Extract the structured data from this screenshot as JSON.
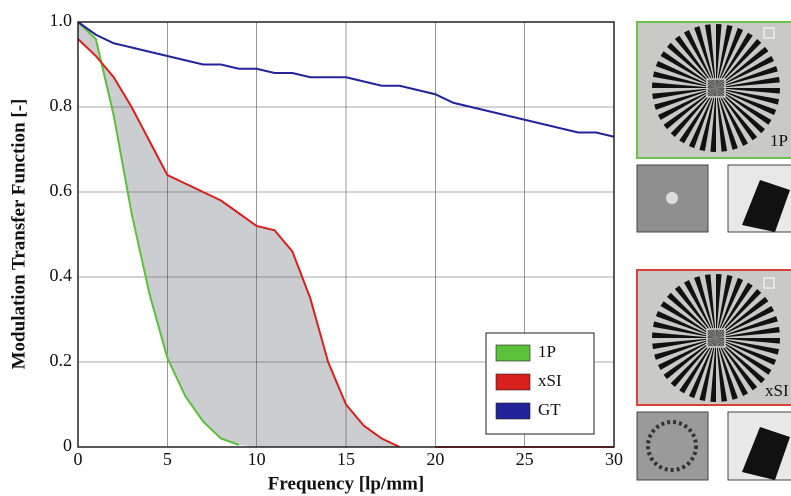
{
  "chart_data": {
    "type": "line",
    "xlabel": "Frequency [lp/mm]",
    "ylabel": "Modulation Transfer Function [-]",
    "x": [
      0,
      1,
      2,
      3,
      4,
      5,
      6,
      7,
      8,
      9,
      10,
      11,
      12,
      13,
      14,
      15,
      16,
      17,
      18,
      19,
      20,
      21,
      22,
      23,
      24,
      25,
      26,
      27,
      28,
      29,
      30
    ],
    "series": [
      {
        "name": "1P",
        "color": "#5cc13a",
        "values": [
          1.0,
          0.96,
          0.78,
          0.55,
          0.36,
          0.21,
          0.12,
          0.06,
          0.02,
          0.005,
          null,
          null,
          null,
          null,
          null,
          null,
          null,
          null,
          null,
          null,
          null,
          null,
          null,
          null,
          null,
          null,
          null,
          null,
          null,
          null,
          null
        ]
      },
      {
        "name": "xSI",
        "color": "#d8201c",
        "values": [
          0.96,
          0.92,
          0.87,
          0.8,
          0.72,
          0.64,
          0.62,
          0.6,
          0.58,
          0.55,
          0.52,
          0.51,
          0.46,
          0.35,
          0.2,
          0.1,
          0.05,
          0.02,
          0.0,
          null,
          0.0,
          0.0,
          0.0,
          0.0,
          0.0,
          0.0,
          0.0,
          0.0,
          0.0,
          0.0,
          0.0
        ]
      },
      {
        "name": "GT",
        "color": "#23239a",
        "values": [
          1.0,
          0.97,
          0.95,
          0.94,
          0.93,
          0.92,
          0.91,
          0.9,
          0.9,
          0.89,
          0.89,
          0.88,
          0.88,
          0.87,
          0.87,
          0.87,
          0.86,
          0.85,
          0.85,
          0.84,
          0.83,
          0.81,
          0.8,
          0.79,
          0.78,
          0.77,
          0.76,
          0.75,
          0.74,
          0.74,
          0.73
        ]
      }
    ],
    "xlim": [
      0,
      30
    ],
    "ylim": [
      0,
      1
    ],
    "xticks": [
      0,
      5,
      10,
      15,
      20,
      25,
      30
    ],
    "yticks": [
      0,
      0.2,
      0.4,
      0.6,
      0.8,
      {
        "value": 1,
        "label": "1.0"
      }
    ],
    "grid": true,
    "legend": "lower-right",
    "annotations": [
      "1P",
      "xSI"
    ]
  }
}
